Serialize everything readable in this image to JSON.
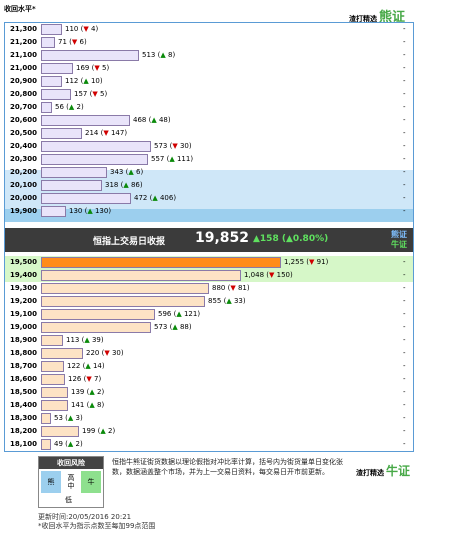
{
  "header": {
    "title": "收回水平*",
    "source_label": "渣打精选",
    "source_brand": "熊证"
  },
  "bear_rows": [
    {
      "level": "21,300",
      "value": "110",
      "change": "4",
      "dir": "down",
      "bar_value": 110
    },
    {
      "level": "21,200",
      "value": "71",
      "change": "6",
      "dir": "down",
      "bar_value": 71
    },
    {
      "level": "21,100",
      "value": "513",
      "change": "8",
      "dir": "up",
      "bar_value": 513
    },
    {
      "level": "21,000",
      "value": "169",
      "change": "5",
      "dir": "down",
      "bar_value": 169
    },
    {
      "level": "20,900",
      "value": "112",
      "change": "10",
      "dir": "up",
      "bar_value": 112
    },
    {
      "level": "20,800",
      "value": "157",
      "change": "5",
      "dir": "down",
      "bar_value": 157
    },
    {
      "level": "20,700",
      "value": "56",
      "change": "2",
      "dir": "up",
      "bar_value": 56
    },
    {
      "level": "20,600",
      "value": "468",
      "change": "48",
      "dir": "up",
      "bar_value": 468
    },
    {
      "level": "20,500",
      "value": "214",
      "change": "147",
      "dir": "down",
      "bar_value": 214
    },
    {
      "level": "20,400",
      "value": "573",
      "change": "30",
      "dir": "down",
      "bar_value": 573
    },
    {
      "level": "20,300",
      "value": "557",
      "change": "111",
      "dir": "up",
      "bar_value": 557
    },
    {
      "level": "20,200",
      "value": "343",
      "change": "6",
      "dir": "up",
      "bar_value": 343
    },
    {
      "level": "20,100",
      "value": "318",
      "change": "86",
      "dir": "up",
      "bar_value": 318
    },
    {
      "level": "20,000",
      "value": "472",
      "change": "406",
      "dir": "up",
      "bar_value": 472
    },
    {
      "level": "19,900",
      "value": "130",
      "change": "130",
      "dir": "up",
      "bar_value": 130
    }
  ],
  "close": {
    "label": "恒指上交易日收报",
    "value": "19,852",
    "change": "158 (▲0.80%)",
    "bear": "熊证",
    "bull": "牛证"
  },
  "bull_rows": [
    {
      "level": "19,500",
      "value": "1,255",
      "change": "91",
      "dir": "down",
      "bar_value": 1255
    },
    {
      "level": "19,400",
      "value": "1,048",
      "change": "150",
      "dir": "down",
      "bar_value": 1048
    },
    {
      "level": "19,300",
      "value": "880",
      "change": "81",
      "dir": "down",
      "bar_value": 880
    },
    {
      "level": "19,200",
      "value": "855",
      "change": "33",
      "dir": "up",
      "bar_value": 855
    },
    {
      "level": "19,100",
      "value": "596",
      "change": "121",
      "dir": "up",
      "bar_value": 596
    },
    {
      "level": "19,000",
      "value": "573",
      "change": "88",
      "dir": "up",
      "bar_value": 573
    },
    {
      "level": "18,900",
      "value": "113",
      "change": "39",
      "dir": "up",
      "bar_value": 113
    },
    {
      "level": "18,800",
      "value": "220",
      "change": "30",
      "dir": "down",
      "bar_value": 220
    },
    {
      "level": "18,700",
      "value": "122",
      "change": "14",
      "dir": "up",
      "bar_value": 122
    },
    {
      "level": "18,600",
      "value": "126",
      "change": "7",
      "dir": "down",
      "bar_value": 126
    },
    {
      "level": "18,500",
      "value": "139",
      "change": "2",
      "dir": "up",
      "bar_value": 139
    },
    {
      "level": "18,400",
      "value": "141",
      "change": "8",
      "dir": "up",
      "bar_value": 141
    },
    {
      "level": "18,300",
      "value": "53",
      "change": "3",
      "dir": "up",
      "bar_value": 53
    },
    {
      "level": "18,200",
      "value": "199",
      "change": "2",
      "dir": "up",
      "bar_value": 199
    },
    {
      "level": "18,100",
      "value": "49",
      "change": "2",
      "dir": "up",
      "bar_value": 49
    }
  ],
  "dash": "-",
  "legend": {
    "title": "收回风险",
    "bear": "熊",
    "mid": "高\n中",
    "bull": "牛",
    "low": "低"
  },
  "note": "恒指牛熊证街货数据以理论假指对冲比率计算，括号内为街货量单日变化张数，数据涵盖整个市场，并为上一交易日资料，每交易日开市前更新。",
  "footer": {
    "source_label": "渣打精选",
    "source_brand": "牛证"
  },
  "updated": "更新时间:20/05/2016 20:21",
  "footnote": "*收回水平为指示点数至每加99点范围",
  "colors": {
    "bear_bar": "#e9e4fa",
    "bull_bar": "#fde3c5",
    "bull_top_bar": "#ff8c1a",
    "up": "#0a8a0a",
    "down": "#d00000"
  }
}
